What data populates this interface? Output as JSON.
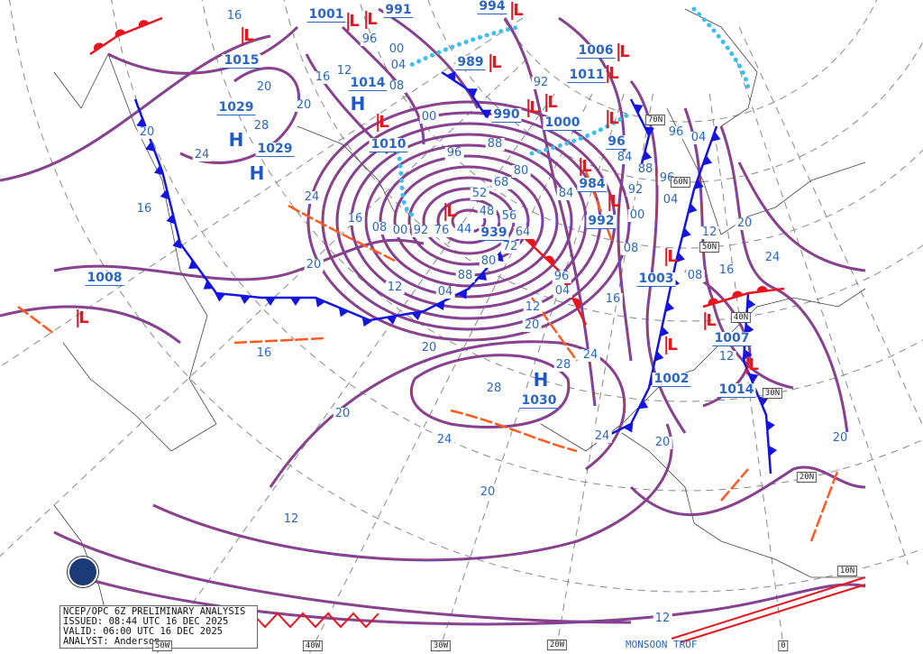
{
  "title_box": {
    "line1": "NCEP/OPC 6Z PRELIMINARY ANALYSIS",
    "line2": "ISSUED: 08:44 UTC 16 DEC 2025",
    "line3": "VALID:  06:00 UTC 16 DEC 2025",
    "line4": "ANALYST: Anderson"
  },
  "logo": "NOAA",
  "colors": {
    "isobar": "#6b3fa8",
    "isobar_inner": "#d0404a",
    "label": "#2a66c4",
    "high": "#1e57c8",
    "low": "#e8141e",
    "cold_front": "#1414e0",
    "warm_front": "#e8141e",
    "trough": "#ff5a1e",
    "ice_edge": "#3cc0f0"
  },
  "pressure_centers": [
    {
      "type": "H",
      "value": "1029"
    },
    {
      "type": "H",
      "value": "1029"
    },
    {
      "type": "L",
      "value": "1015"
    },
    {
      "type": "H",
      "value": "1014"
    },
    {
      "type": "L",
      "value": "1010"
    },
    {
      "type": "L",
      "value": "1001"
    },
    {
      "type": "L",
      "value": "991"
    },
    {
      "type": "L",
      "value": "994"
    },
    {
      "type": "L",
      "value": "989"
    },
    {
      "type": "L",
      "value": "990"
    },
    {
      "type": "L",
      "value": "1000"
    },
    {
      "type": "L",
      "value": "1006"
    },
    {
      "type": "L",
      "value": "1011"
    },
    {
      "type": "L",
      "value": "96"
    },
    {
      "type": "L",
      "value": "984"
    },
    {
      "type": "L",
      "value": "992"
    },
    {
      "type": "L",
      "value": "939"
    },
    {
      "type": "L",
      "value": "1003"
    },
    {
      "type": "L",
      "value": "1007"
    },
    {
      "type": "L",
      "value": "1002"
    },
    {
      "type": "L",
      "value": "1014"
    },
    {
      "type": "H",
      "value": "1030"
    },
    {
      "type": "L",
      "value": "1008"
    }
  ],
  "isobar_labels": [
    "16",
    "20",
    "28",
    "24",
    "20",
    "16",
    "12",
    "16",
    "20",
    "96",
    "00",
    "04",
    "08",
    "00",
    "96",
    "88",
    "92",
    "80",
    "84",
    "84",
    "88",
    "92",
    "96",
    "96",
    "04",
    "04",
    "00",
    "08",
    "12",
    "16",
    "20",
    "24",
    "08",
    "12",
    "16",
    "12",
    "20",
    "24",
    "04",
    "96",
    "04",
    "88",
    "80",
    "72",
    "64",
    "56",
    "48",
    "52",
    "68",
    "44",
    "76",
    "92",
    "00",
    "08",
    "16",
    "24",
    "20",
    "12",
    "20",
    "16",
    "20",
    "24",
    "20",
    "12",
    "12",
    "28",
    "28",
    "24",
    "20",
    "20"
  ],
  "grid_labels": {
    "longitude": [
      "50W",
      "40W",
      "30W",
      "20W",
      "0"
    ],
    "latitude": [
      "70N",
      "60N",
      "50N",
      "40N",
      "30N",
      "20N",
      "10N"
    ]
  },
  "annotations": {
    "monsoon": "MONSOON TROF"
  }
}
